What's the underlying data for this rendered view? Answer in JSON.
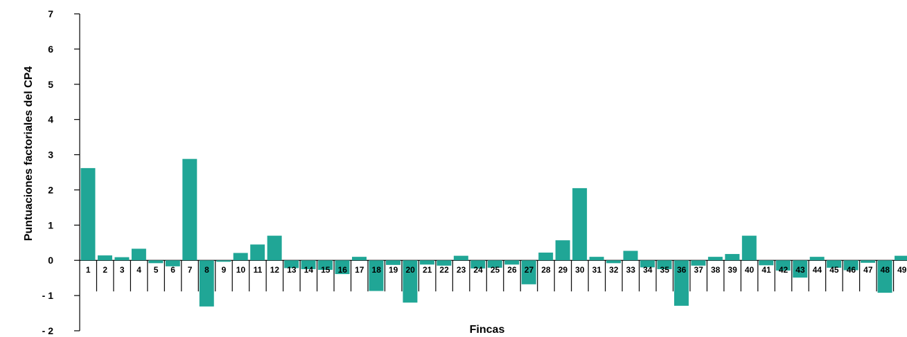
{
  "chart_data": {
    "type": "bar",
    "title": "",
    "xlabel": "Fincas",
    "ylabel": "Puntuaciones factoriales del CP4",
    "ylim": [
      -2,
      7
    ],
    "yticks": [
      7,
      6,
      5,
      4,
      3,
      2,
      1,
      0,
      -1,
      -2
    ],
    "ytick_labels": [
      "7",
      "6",
      "5",
      "4",
      "3",
      "2",
      "1",
      "0",
      "- 1",
      "- 2"
    ],
    "bar_color": "#20A696",
    "categories": [
      "1",
      "2",
      "3",
      "4",
      "5",
      "6",
      "7",
      "8",
      "9",
      "10",
      "11",
      "12",
      "13",
      "14",
      "15",
      "16",
      "17",
      "18",
      "19",
      "20",
      "21",
      "22",
      "23",
      "24",
      "25",
      "26",
      "27",
      "28",
      "29",
      "30",
      "31",
      "32",
      "33",
      "34",
      "35",
      "36",
      "37",
      "38",
      "39",
      "40",
      "41",
      "42",
      "43",
      "44",
      "45",
      "46",
      "47",
      "48",
      "49"
    ],
    "values": [
      2.62,
      0.14,
      0.09,
      0.33,
      -0.08,
      -0.17,
      2.88,
      -1.31,
      -0.04,
      0.21,
      0.45,
      0.7,
      -0.22,
      -0.25,
      -0.27,
      -0.39,
      0.1,
      -0.87,
      -0.13,
      -1.2,
      -0.12,
      -0.15,
      0.13,
      -0.23,
      -0.21,
      -0.12,
      -0.68,
      0.22,
      0.57,
      2.05,
      0.1,
      -0.08,
      0.27,
      -0.2,
      -0.25,
      -1.29,
      -0.15,
      0.1,
      0.18,
      0.7,
      -0.14,
      -0.29,
      -0.49,
      0.1,
      -0.21,
      -0.28,
      -0.07,
      -0.92,
      0.13
    ]
  }
}
